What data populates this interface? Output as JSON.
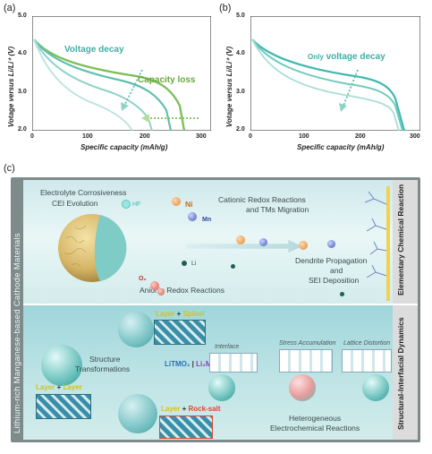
{
  "panel_a": {
    "label": "(a)",
    "ylabel": "Votage versus Li/Li⁺ (V)",
    "xlabel": "Specific capacity (mAh/g)",
    "yticks": [
      "5.0",
      "4.0",
      "3.0",
      "2.0"
    ],
    "xticks": [
      "0",
      "100",
      "200",
      "300"
    ],
    "annot_voltage": "Voltage decay",
    "annot_capacity": "Capacity loss"
  },
  "panel_b": {
    "label": "(b)",
    "ylabel": "Votage versus Li/Li⁺ (V)",
    "xlabel": "Specific capacity (mAh/g)",
    "yticks": [
      "5.0",
      "4.0",
      "3.0",
      "2.0"
    ],
    "xticks": [
      "0",
      "100",
      "200",
      "300"
    ],
    "annot_only": "Only",
    "annot_voltage": "voltage decay"
  },
  "panel_c": {
    "label": "(c)",
    "left_title": "Lithium-rich Manganese-based Cathode Materials",
    "right_top": "Elementary Chemical Reaction",
    "right_bottom": "Structural-Interfacial Dynamics",
    "electrolyte": "Electrolyte Corrosiveness",
    "cei": "CEI Evolution",
    "hf": "HF",
    "ni": "Ni",
    "mn": "Mn",
    "li": "Li",
    "o2": "O₂",
    "anionic": "Anionic Redox Reactions",
    "cationic": "Cationic Redox Reactions",
    "tm_migration": "and TMs Migration",
    "dendrite": "Dendrite Propagation",
    "and": "and",
    "sei": "SEI Deposition",
    "structure": "Structure",
    "transformations": "Transformations",
    "layer": "Layer",
    "plus": "+",
    "spinel": "Spinel",
    "rocksalt": "Rock-salt",
    "litmo": "LiTMO₂",
    "li2mno3": "Li₂MnO₃",
    "interface": "Interface",
    "stress": "Stress Accumulation",
    "lattice": "Lattice Distortion",
    "heterogeneous": "Heterogeneous",
    "electrochem": "Electrochemical Reactions"
  },
  "colors": {
    "teal": "#3fb9b0",
    "green": "#6cb04a",
    "accent_yellow": "#e8d23a",
    "accent_red": "#e0452f"
  }
}
